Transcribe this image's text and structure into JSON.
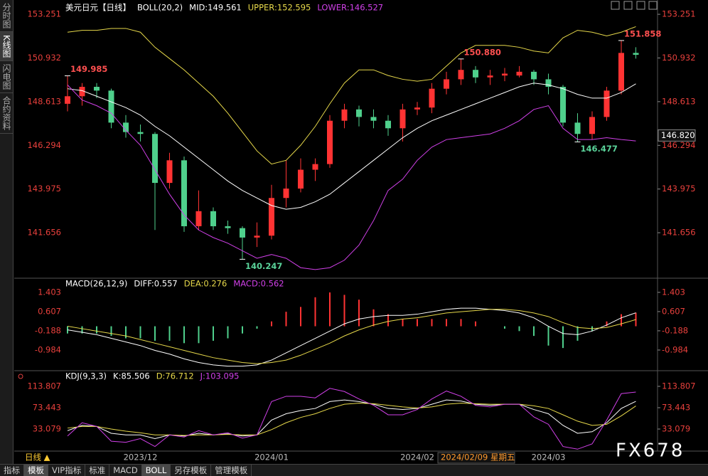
{
  "sidebar": [
    "分时图",
    "K线图",
    "闪电图",
    "合约资料"
  ],
  "chart_data": [
    {
      "type": "candlestick",
      "title": "美元日元【日线】",
      "indicator": "BOLL(20,2)",
      "categories": [
        null,
        null,
        null,
        null,
        null,
        "2023/12",
        null,
        null,
        null,
        null,
        null,
        null,
        null,
        null,
        "2024/01",
        null,
        null,
        null,
        null,
        null,
        null,
        null,
        null,
        null,
        "2024/02",
        null,
        null,
        null,
        null,
        null,
        null,
        null,
        null,
        "2024/03",
        null,
        null,
        null,
        null,
        null,
        null
      ],
      "open": [
        148.5,
        148.9,
        149.4,
        149.2,
        147.5,
        147.0,
        146.9,
        144.3,
        145.5,
        142.0,
        142.8,
        142.0,
        141.9,
        141.4,
        141.5,
        143.5,
        144.0,
        145.0,
        145.3,
        147.6,
        148.2,
        147.8,
        147.6,
        147.2,
        148.2,
        148.3,
        149.3,
        149.8,
        150.3,
        149.9,
        150.0,
        150.0,
        150.2,
        149.8,
        149.4,
        147.5,
        146.9,
        147.8,
        149.2,
        151.2
      ],
      "high": [
        149.985,
        149.6,
        149.6,
        149.3,
        147.9,
        147.4,
        147.0,
        145.9,
        145.7,
        143.9,
        143.0,
        142.3,
        142.0,
        142.2,
        144.2,
        145.5,
        145.6,
        145.6,
        147.9,
        148.5,
        148.4,
        148.2,
        147.9,
        148.5,
        148.6,
        149.6,
        150.2,
        150.88,
        150.5,
        150.3,
        150.4,
        150.5,
        150.3,
        150.1,
        149.5,
        148.0,
        148.1,
        149.4,
        151.858,
        151.5
      ],
      "low": [
        148.1,
        148.4,
        148.8,
        147.2,
        146.7,
        146.5,
        141.8,
        144.0,
        141.7,
        141.8,
        141.8,
        141.6,
        140.247,
        140.9,
        141.3,
        143.0,
        143.8,
        144.4,
        145.1,
        147.2,
        147.3,
        147.2,
        146.8,
        146.5,
        147.9,
        148.0,
        149.0,
        149.5,
        149.6,
        149.5,
        149.7,
        149.9,
        149.5,
        149.0,
        147.3,
        146.477,
        146.6,
        147.6,
        149.0,
        150.9
      ],
      "close": [
        148.9,
        149.4,
        149.2,
        147.5,
        147.0,
        146.9,
        144.3,
        145.5,
        142.0,
        142.8,
        142.0,
        141.9,
        141.4,
        141.5,
        143.5,
        144.0,
        145.0,
        145.3,
        147.6,
        148.2,
        147.8,
        147.6,
        147.2,
        148.2,
        148.3,
        149.3,
        149.8,
        150.3,
        149.9,
        150.0,
        150.1,
        150.2,
        149.8,
        149.4,
        147.5,
        146.9,
        147.8,
        149.2,
        151.2,
        151.1
      ],
      "up_color": "#ff3333",
      "down_color": "#4fd08c",
      "series": [
        {
          "name": "MID:149.561",
          "color": "#ffffff",
          "values": [
            149.3,
            149.2,
            148.9,
            148.6,
            148.3,
            147.9,
            147.3,
            146.8,
            146.2,
            145.6,
            145.0,
            144.4,
            143.9,
            143.5,
            143.1,
            142.9,
            143.0,
            143.3,
            143.7,
            144.3,
            144.9,
            145.5,
            146.1,
            146.7,
            147.2,
            147.6,
            147.9,
            148.2,
            148.5,
            148.8,
            149.1,
            149.4,
            149.6,
            149.5,
            149.3,
            149.0,
            148.8,
            148.8,
            149.1,
            149.561
          ]
        },
        {
          "name": "UPPER:152.595",
          "color": "#e6d84a",
          "values": [
            152.3,
            152.4,
            152.4,
            152.5,
            152.5,
            152.3,
            151.5,
            150.9,
            150.3,
            149.6,
            148.9,
            148.0,
            147.0,
            146.0,
            145.3,
            145.5,
            146.3,
            147.3,
            148.5,
            149.6,
            150.3,
            150.3,
            150.0,
            149.8,
            149.7,
            149.8,
            150.5,
            151.2,
            151.6,
            151.6,
            151.6,
            151.5,
            151.3,
            151.2,
            152.0,
            152.4,
            152.3,
            152.1,
            152.3,
            152.595
          ]
        },
        {
          "name": "LOWER:146.527",
          "color": "#d040e8",
          "values": [
            149.5,
            148.7,
            148.4,
            148.0,
            147.1,
            146.3,
            145.0,
            143.7,
            142.6,
            141.8,
            141.4,
            141.1,
            140.7,
            140.3,
            140.5,
            140.3,
            139.8,
            139.7,
            139.8,
            140.2,
            141.0,
            142.3,
            143.9,
            144.5,
            145.5,
            146.2,
            146.6,
            146.7,
            146.8,
            146.9,
            147.2,
            147.6,
            148.2,
            148.4,
            147.2,
            146.6,
            146.6,
            146.7,
            146.6,
            146.527
          ]
        }
      ],
      "ylim": [
        139.28,
        153.82
      ],
      "yticks": [
        153.251,
        150.932,
        148.613,
        146.294,
        143.975,
        141.656
      ],
      "annotations": [
        149.985,
        140.247,
        {
          "value": 150.88,
          "label": "150.880"
        },
        151.858,
        146.477
      ],
      "price_marker": {
        "value": 146.82,
        "label": "146.820"
      }
    },
    {
      "type": "macd",
      "title": "MACD(26,12,9)",
      "series": [
        {
          "name": "DIFF:0.557",
          "color": "#ffffff",
          "values": [
            -0.15,
            -0.25,
            -0.35,
            -0.5,
            -0.65,
            -0.8,
            -1.0,
            -1.15,
            -1.35,
            -1.5,
            -1.6,
            -1.65,
            -1.65,
            -1.6,
            -1.4,
            -1.1,
            -0.8,
            -0.5,
            -0.2,
            0.1,
            0.3,
            0.4,
            0.45,
            0.45,
            0.5,
            0.6,
            0.7,
            0.75,
            0.75,
            0.7,
            0.65,
            0.55,
            0.35,
            0.0,
            -0.3,
            -0.35,
            -0.2,
            0.05,
            0.35,
            0.557
          ]
        },
        {
          "name": "DEA:0.276",
          "color": "#e6d84a",
          "values": [
            0.0,
            -0.1,
            -0.2,
            -0.3,
            -0.4,
            -0.55,
            -0.7,
            -0.85,
            -1.0,
            -1.15,
            -1.3,
            -1.4,
            -1.5,
            -1.55,
            -1.5,
            -1.4,
            -1.2,
            -0.95,
            -0.7,
            -0.4,
            -0.15,
            0.05,
            0.2,
            0.3,
            0.35,
            0.45,
            0.55,
            0.6,
            0.65,
            0.7,
            0.7,
            0.65,
            0.55,
            0.4,
            0.15,
            -0.05,
            -0.1,
            -0.05,
            0.1,
            0.276
          ]
        }
      ],
      "histogram": {
        "name": "MACD:0.562",
        "name_color": "#d040e8",
        "up_color": "#ff3333",
        "down_color": "#4fd08c",
        "values": [
          -0.3,
          -0.3,
          -0.3,
          -0.4,
          -0.5,
          -0.5,
          -0.6,
          -0.6,
          -0.7,
          -0.7,
          -0.6,
          -0.5,
          -0.3,
          -0.1,
          0.2,
          0.6,
          0.8,
          1.2,
          1.4,
          1.3,
          1.1,
          0.7,
          0.5,
          0.3,
          0.3,
          0.3,
          0.3,
          0.3,
          0.2,
          0.0,
          -0.1,
          -0.2,
          -0.4,
          -0.8,
          -0.9,
          -0.6,
          -0.2,
          0.2,
          0.5,
          0.562
        ]
      },
      "ylim": [
        -1.81,
        1.93
      ],
      "yticks": [
        1.403,
        0.607,
        -0.188,
        -0.984
      ]
    },
    {
      "type": "kdj",
      "title": "KDJ(9,3,3)",
      "series": [
        {
          "name": "K:85.506",
          "color": "#ffffff",
          "values": [
            30,
            40,
            38,
            25,
            22,
            22,
            15,
            22,
            20,
            25,
            22,
            24,
            20,
            22,
            50,
            62,
            68,
            72,
            85,
            88,
            85,
            80,
            72,
            70,
            72,
            80,
            88,
            86,
            80,
            78,
            80,
            80,
            70,
            62,
            40,
            25,
            28,
            45,
            72,
            85.506
          ]
        },
        {
          "name": "D:76.712",
          "color": "#e6d84a",
          "values": [
            35,
            38,
            38,
            33,
            29,
            26,
            22,
            22,
            21,
            22,
            22,
            23,
            22,
            22,
            32,
            45,
            55,
            62,
            72,
            80,
            82,
            81,
            78,
            75,
            73,
            75,
            80,
            82,
            81,
            80,
            80,
            80,
            77,
            72,
            60,
            48,
            40,
            42,
            58,
            76.712
          ]
        },
        {
          "name": "J:103.095",
          "color": "#d040e8",
          "values": [
            20,
            45,
            38,
            10,
            8,
            15,
            0,
            22,
            18,
            30,
            22,
            26,
            16,
            22,
            85,
            95,
            95,
            92,
            110,
            104,
            90,
            78,
            60,
            60,
            70,
            90,
            105,
            95,
            78,
            75,
            80,
            80,
            56,
            42,
            0,
            -5,
            5,
            50,
            100,
            103.095
          ]
        }
      ],
      "ylim": [
        -7.3,
        140.7
      ],
      "yticks": [
        113.807,
        73.443,
        33.079
      ]
    }
  ],
  "footer": {
    "period": "日线 ▲",
    "cursor_date": "2024/02/09 星期五",
    "watermark": "FX678"
  },
  "tabs": [
    {
      "label": "指标",
      "selected": false
    },
    {
      "label": "模板",
      "selected": true
    },
    {
      "label": "VIP指标",
      "selected": false
    },
    {
      "label": "标准",
      "selected": false
    },
    {
      "label": "MACD",
      "selected": false
    },
    {
      "label": "BOLL",
      "selected": true
    },
    {
      "label": "另存模板",
      "selected": false
    },
    {
      "label": "管理模板",
      "selected": false
    }
  ]
}
